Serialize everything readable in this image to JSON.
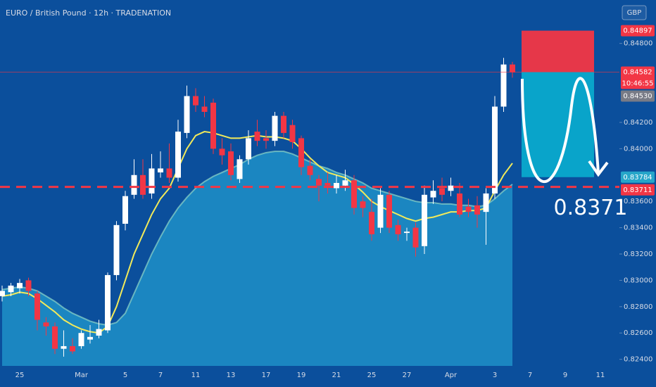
{
  "chart_data": {
    "type": "candlestick",
    "title": "EURO / British Pound · 12h · TRADENATION",
    "currency": "GBP",
    "up_color": "#ffffff",
    "down_color": "#f23645",
    "background": "#0b4f9c",
    "categories": [
      null,
      null,
      "25",
      null,
      null,
      null,
      null,
      null,
      null,
      "Mar",
      null,
      null,
      null,
      null,
      "5",
      null,
      null,
      null,
      "7",
      null,
      null,
      null,
      "11",
      null,
      null,
      null,
      "13",
      null,
      null,
      null,
      "17",
      null,
      null,
      null,
      "19",
      null,
      null,
      null,
      "21",
      null,
      null,
      null,
      "25",
      null,
      null,
      null,
      "27",
      null,
      null,
      null,
      null,
      "Apr",
      null,
      null,
      null,
      null,
      "3",
      null,
      null,
      null,
      "7",
      null,
      null,
      null,
      "9",
      null,
      null,
      null,
      "11"
    ],
    "open": [
      0.8288,
      0.8291,
      0.8294,
      0.83,
      0.829,
      0.8268,
      0.8265,
      0.8248,
      0.825,
      0.825,
      0.8255,
      0.8258,
      0.8262,
      0.8304,
      0.8343,
      0.8365,
      0.838,
      0.8366,
      0.8382,
      0.8385,
      0.8378,
      0.8412,
      0.844,
      0.8432,
      0.8435,
      0.84,
      0.8398,
      0.8377,
      0.8392,
      0.8413,
      0.8408,
      0.8406,
      0.8425,
      0.8418,
      0.8408,
      0.8387,
      0.8377,
      0.8374,
      0.837,
      0.8372,
      0.8376,
      0.836,
      0.8352,
      0.834,
      0.8365,
      0.8342,
      0.8336,
      0.834,
      0.8326,
      0.8363,
      0.837,
      0.8368,
      0.8366,
      0.8356,
      0.8357,
      0.8352,
      0.8366,
      0.8432,
      0.8464,
      null,
      null,
      null,
      null,
      null,
      null,
      null,
      null,
      null,
      null
    ],
    "high": [
      0.8296,
      0.8298,
      0.8301,
      0.8302,
      0.8292,
      0.8272,
      0.8268,
      0.8262,
      0.8256,
      0.8262,
      0.8266,
      0.827,
      0.8306,
      0.8345,
      0.8368,
      0.8392,
      0.8392,
      0.8396,
      0.8398,
      0.8404,
      0.8422,
      0.8448,
      0.8446,
      0.844,
      0.8438,
      0.8408,
      0.8404,
      0.8395,
      0.8414,
      0.8422,
      0.8414,
      0.8428,
      0.8428,
      0.8422,
      0.841,
      0.8392,
      0.838,
      0.8382,
      0.838,
      0.8384,
      0.838,
      0.8364,
      0.8362,
      0.837,
      0.8368,
      0.8346,
      0.834,
      0.8344,
      0.8372,
      0.8376,
      0.8378,
      0.8378,
      0.8374,
      0.8362,
      0.8364,
      0.837,
      0.844,
      0.8469,
      0.8466,
      null,
      null,
      null,
      null,
      null,
      null,
      null,
      null,
      null,
      null
    ],
    "low": [
      0.8284,
      0.8288,
      0.829,
      0.8288,
      0.8262,
      0.8258,
      0.8244,
      0.8242,
      0.8244,
      0.8248,
      0.8252,
      0.8256,
      0.826,
      0.83,
      0.8338,
      0.8362,
      0.8362,
      0.8362,
      0.8378,
      0.8374,
      0.8375,
      0.8408,
      0.8428,
      0.8424,
      0.8396,
      0.8388,
      0.8376,
      0.8374,
      0.8388,
      0.8402,
      0.84,
      0.8402,
      0.8408,
      0.84,
      0.838,
      0.8376,
      0.836,
      0.8366,
      0.8366,
      0.8368,
      0.835,
      0.8348,
      0.833,
      0.8336,
      0.8336,
      0.833,
      0.833,
      0.8318,
      0.832,
      0.8358,
      0.836,
      0.8364,
      0.8348,
      0.8348,
      0.834,
      0.8327,
      0.8362,
      0.8428,
      0.8454,
      null,
      null,
      null,
      null,
      null,
      null,
      null,
      null,
      null,
      null
    ],
    "close": [
      0.8292,
      0.8296,
      0.8298,
      0.8292,
      0.827,
      0.8265,
      0.8248,
      0.825,
      0.8246,
      0.826,
      0.8257,
      0.8263,
      0.8304,
      0.8342,
      0.8364,
      0.838,
      0.8365,
      0.8385,
      0.8385,
      0.8378,
      0.8413,
      0.844,
      0.8433,
      0.8428,
      0.84,
      0.8395,
      0.838,
      0.8392,
      0.8408,
      0.8406,
      0.8406,
      0.8425,
      0.8412,
      0.8405,
      0.8386,
      0.838,
      0.8372,
      0.8372,
      0.8374,
      0.8376,
      0.8355,
      0.8355,
      0.8335,
      0.8365,
      0.834,
      0.8335,
      0.8337,
      0.8325,
      0.8365,
      0.8368,
      0.8365,
      0.8372,
      0.835,
      0.8352,
      0.835,
      0.8366,
      0.8432,
      0.8464,
      0.8458,
      null,
      null,
      null,
      null,
      null,
      null,
      null,
      null,
      null,
      null
    ],
    "series": [
      {
        "type": "area",
        "color": "#1f8fc8",
        "line_color": "#8fd6c8",
        "values": [
          0.8293,
          0.8294,
          0.8295,
          0.8294,
          0.8292,
          0.8288,
          0.8284,
          0.8279,
          0.8275,
          0.8272,
          0.8269,
          0.8267,
          0.8266,
          0.8268,
          0.8275,
          0.829,
          0.8305,
          0.832,
          0.8333,
          0.8345,
          0.8355,
          0.8363,
          0.837,
          0.8375,
          0.8379,
          0.8382,
          0.8385,
          0.8388,
          0.8392,
          0.8395,
          0.8397,
          0.8398,
          0.8398,
          0.8396,
          0.8393,
          0.839,
          0.8387,
          0.8385,
          0.8382,
          0.838,
          0.8377,
          0.8374,
          0.837,
          0.8368,
          0.8366,
          0.8364,
          0.8362,
          0.836,
          0.8359,
          0.8359,
          0.8358,
          0.8358,
          0.8357,
          0.8357,
          0.8356,
          0.8357,
          0.8362,
          0.8368,
          0.8373,
          null,
          null,
          null,
          null,
          null,
          null,
          null,
          null,
          null,
          null
        ]
      },
      {
        "type": "line",
        "color": "#f2ea5a",
        "values": [
          0.8288,
          0.8289,
          0.8291,
          0.829,
          0.8286,
          0.8281,
          0.8276,
          0.827,
          0.8266,
          0.8263,
          0.8261,
          0.826,
          0.8265,
          0.828,
          0.83,
          0.832,
          0.8335,
          0.835,
          0.8362,
          0.837,
          0.8385,
          0.84,
          0.841,
          0.8413,
          0.8412,
          0.841,
          0.8408,
          0.8408,
          0.8409,
          0.841,
          0.8409,
          0.8409,
          0.8408,
          0.8406,
          0.84,
          0.8393,
          0.8387,
          0.8382,
          0.838,
          0.8378,
          0.8373,
          0.8367,
          0.836,
          0.8356,
          0.8353,
          0.835,
          0.8347,
          0.8345,
          0.8347,
          0.8348,
          0.835,
          0.8352,
          0.8352,
          0.8353,
          0.8353,
          0.8355,
          0.8368,
          0.838,
          0.8389,
          null,
          null,
          null,
          null,
          null,
          null,
          null,
          null,
          null,
          null
        ]
      }
    ],
    "ylim": [
      0.8235,
      0.8513
    ],
    "yticks": [
      {
        "value": 0.848,
        "label": "0.84800"
      },
      {
        "value": 0.842,
        "label": "0.84200"
      },
      {
        "value": 0.84,
        "label": "0.84000"
      },
      {
        "value": 0.836,
        "label": "0.83600"
      },
      {
        "value": 0.834,
        "label": "0.83400"
      },
      {
        "value": 0.832,
        "label": "0.83200"
      },
      {
        "value": 0.83,
        "label": "0.83000"
      },
      {
        "value": 0.828,
        "label": "0.82800"
      },
      {
        "value": 0.826,
        "label": "0.82600"
      },
      {
        "value": 0.824,
        "label": "0.82400"
      }
    ],
    "price_labels": [
      {
        "value": 0.84897,
        "label": "0.84897",
        "color": "#f23645"
      },
      {
        "value": 0.84582,
        "label": "0.84582",
        "color": "#f23645"
      },
      {
        "value": 0.8453,
        "label": "0.84530",
        "color": "#787b86"
      },
      {
        "value": 0.83784,
        "label": "0.83784",
        "color": "#26a6c9"
      },
      {
        "value": 0.83711,
        "label": "0.83711",
        "color": "#f23645"
      }
    ],
    "countdown": "10:46:55",
    "level": {
      "value": 0.8371,
      "label": "0.8371",
      "color": "#f23645"
    }
  }
}
